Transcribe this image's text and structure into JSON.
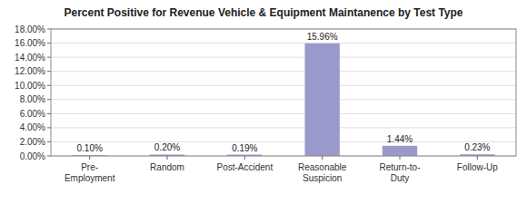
{
  "chart_data": {
    "type": "bar",
    "title": "Percent Positive for Revenue Vehicle & Equipment Maintanence by Test Type",
    "categories": [
      "Pre-\nEmployment",
      "Random",
      "Post-Accident",
      "Reasonable\nSuspicion",
      "Return-to-\nDuty",
      "Follow-Up"
    ],
    "values": [
      0.1,
      0.2,
      0.19,
      15.96,
      1.44,
      0.23
    ],
    "value_labels": [
      "0.10%",
      "0.20%",
      "0.19%",
      "15.96%",
      "1.44%",
      "0.23%"
    ],
    "color": "#9999CC",
    "ylim": [
      0,
      18.0
    ],
    "yticks": [
      {
        "value": 0.0,
        "label": "0.00%"
      },
      {
        "value": 2.0,
        "label": "2.00%"
      },
      {
        "value": 4.0,
        "label": "4.00%"
      },
      {
        "value": 6.0,
        "label": "6.00%"
      },
      {
        "value": 8.0,
        "label": "8.00%"
      },
      {
        "value": 10.0,
        "label": "10.00%"
      },
      {
        "value": 12.0,
        "label": "12.00%"
      },
      {
        "value": 14.0,
        "label": "14.00%"
      },
      {
        "value": 16.0,
        "label": "16.00%"
      },
      {
        "value": 18.0,
        "label": "18.00%"
      }
    ],
    "grid": true,
    "data_labels": true
  }
}
